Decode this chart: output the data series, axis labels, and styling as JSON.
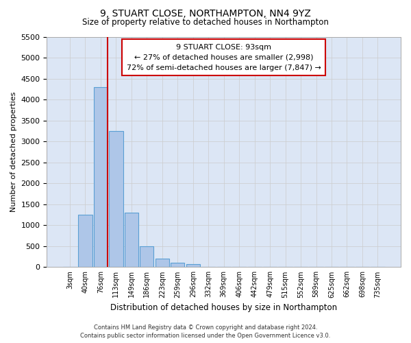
{
  "title": "9, STUART CLOSE, NORTHAMPTON, NN4 9YZ",
  "subtitle": "Size of property relative to detached houses in Northampton",
  "xlabel": "Distribution of detached houses by size in Northampton",
  "ylabel": "Number of detached properties",
  "footer_line1": "Contains HM Land Registry data © Crown copyright and database right 2024.",
  "footer_line2": "Contains public sector information licensed under the Open Government Licence v3.0.",
  "categories": [
    "3sqm",
    "40sqm",
    "76sqm",
    "113sqm",
    "149sqm",
    "186sqm",
    "223sqm",
    "259sqm",
    "296sqm",
    "332sqm",
    "369sqm",
    "406sqm",
    "442sqm",
    "479sqm",
    "515sqm",
    "552sqm",
    "589sqm",
    "625sqm",
    "662sqm",
    "698sqm",
    "735sqm"
  ],
  "values": [
    0,
    1250,
    4300,
    3250,
    1300,
    500,
    200,
    100,
    75,
    0,
    0,
    0,
    0,
    0,
    0,
    0,
    0,
    0,
    0,
    0,
    0
  ],
  "bar_color": "#aec6e8",
  "bar_edge_color": "#5a9fd4",
  "vline_x_index": 2,
  "vline_color": "#cc0000",
  "ylim": [
    0,
    5500
  ],
  "yticks": [
    0,
    500,
    1000,
    1500,
    2000,
    2500,
    3000,
    3500,
    4000,
    4500,
    5000,
    5500
  ],
  "annotation_title": "9 STUART CLOSE: 93sqm",
  "annotation_line1": "← 27% of detached houses are smaller (2,998)",
  "annotation_line2": "72% of semi-detached houses are larger (7,847) →",
  "annotation_box_color": "#ffffff",
  "annotation_box_edge": "#cc0000",
  "grid_color": "#cccccc",
  "background_color": "#ffffff",
  "plot_bg_color": "#dce6f5"
}
